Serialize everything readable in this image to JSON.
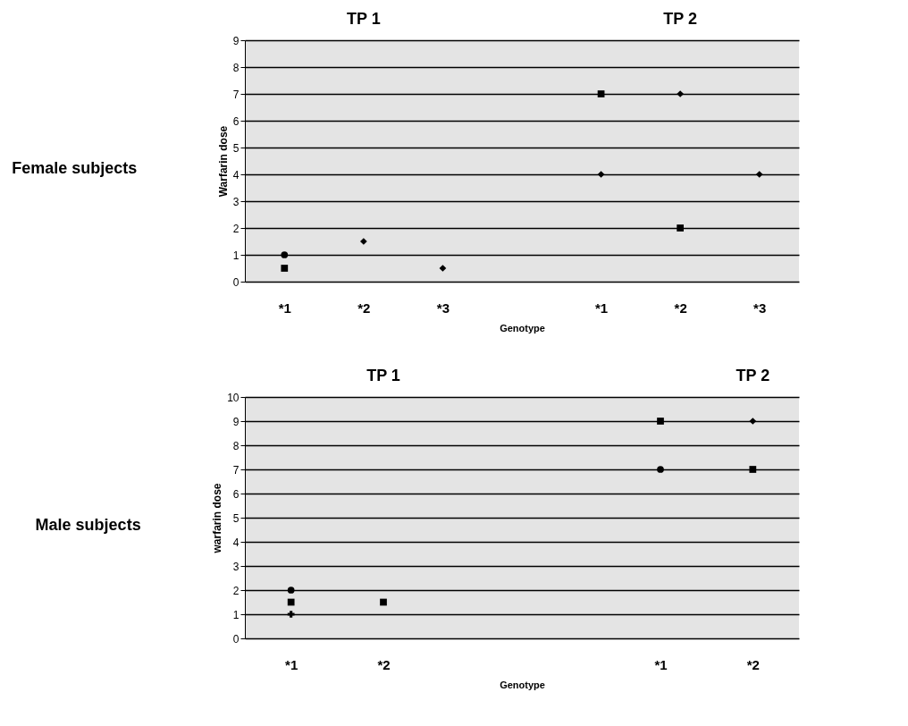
{
  "chart_data": [
    {
      "type": "scatter",
      "title": "Female subjects",
      "xlabel": "Genotype",
      "ylabel": "Warfarin dose",
      "categories": [
        "*1",
        "*2",
        "*3",
        null,
        "*1",
        "*2",
        "*3"
      ],
      "ylim": [
        0,
        9
      ],
      "yticks": [
        0,
        1,
        2,
        3,
        4,
        5,
        6,
        7,
        8,
        9
      ],
      "grid": "y",
      "annotations": [
        "TP 1",
        "TP 2"
      ],
      "series": [
        {
          "marker": "square",
          "color": "#000000",
          "values": [
            0.5,
            null,
            null,
            null,
            7,
            2,
            null
          ]
        },
        {
          "marker": "diamond",
          "color": "#000000",
          "values": [
            null,
            1.5,
            0.5,
            null,
            4,
            7,
            4
          ]
        },
        {
          "marker": "circle",
          "color": "#000000",
          "values": [
            1,
            null,
            null,
            null,
            null,
            null,
            null
          ]
        }
      ]
    },
    {
      "type": "scatter",
      "title": "Male subjects",
      "xlabel": "Genotype",
      "ylabel": "warfarin dose",
      "categories": [
        "*1",
        "*2",
        null,
        null,
        "*1",
        "*2"
      ],
      "ylim": [
        0,
        10
      ],
      "yticks": [
        0,
        1,
        2,
        3,
        4,
        5,
        6,
        7,
        8,
        9,
        10
      ],
      "grid": "y",
      "annotations": [
        "TP 1",
        "TP 2"
      ],
      "series": [
        {
          "marker": "square",
          "color": "#000000",
          "values": [
            1.5,
            1.5,
            null,
            null,
            9,
            7
          ]
        },
        {
          "marker": "diamond",
          "color": "#000000",
          "values": [
            null,
            null,
            null,
            null,
            null,
            9
          ]
        },
        {
          "marker": "circle",
          "color": "#000000",
          "values": [
            2,
            null,
            null,
            null,
            7,
            null
          ]
        },
        {
          "marker": "cross",
          "color": "#000000",
          "values": [
            1,
            null,
            null,
            null,
            null,
            null
          ]
        }
      ]
    }
  ]
}
